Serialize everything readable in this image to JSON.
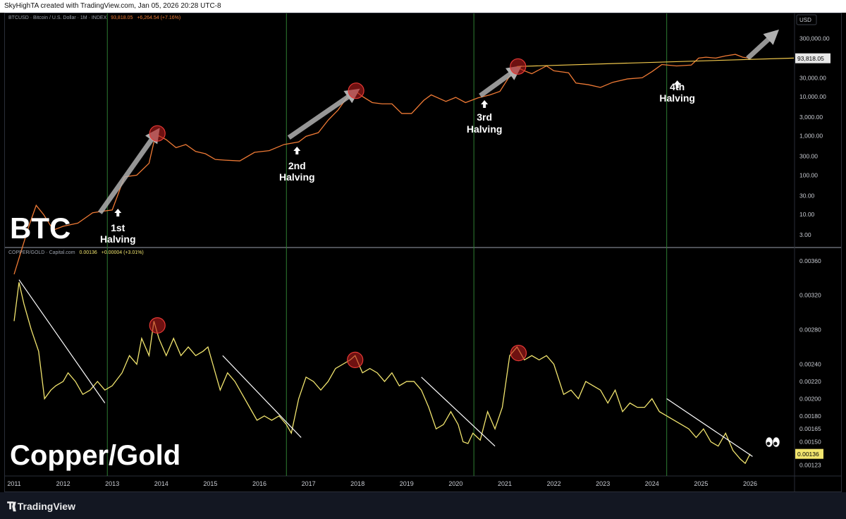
{
  "header": {
    "text": "SkyHighTA created with TradingView.com, Jan 05, 2026 20:28 UTC-8"
  },
  "footer": {
    "brand": "TradingView"
  },
  "colors": {
    "btc_line": "#ef7a35",
    "cg_line": "#f2e56e",
    "trend": "#ffffff",
    "vline": "#2f7d32",
    "circle_fill": "#b71c1c",
    "circle_stroke": "#e53935",
    "arrow": "#b0b0b0",
    "btc_trend": "#f2c94c"
  },
  "chart_data": [
    {
      "type": "line",
      "legend": {
        "symbol": "BTCUSD · Bitcoin / U.S. Dollar · 1M · INDEX",
        "value": "93,818.05",
        "change": "+6,264.54 (+7.16%)"
      },
      "big_label": "BTC",
      "axis_unit": "USD",
      "scale": "log",
      "ylim": [
        1.5,
        700000
      ],
      "y_ticks": [
        {
          "v": 300000,
          "label": "300,000.00"
        },
        {
          "v": 100000,
          "label": "100,000.00"
        },
        {
          "v": 30000,
          "label": "30,000.00"
        },
        {
          "v": 10000,
          "label": "10,000.00"
        },
        {
          "v": 3000,
          "label": "3,000.00"
        },
        {
          "v": 1000,
          "label": "1,000.00"
        },
        {
          "v": 300,
          "label": "300.00"
        },
        {
          "v": 100,
          "label": "100.00"
        },
        {
          "v": 30,
          "label": "30.00"
        },
        {
          "v": 10,
          "label": "10.00"
        },
        {
          "v": 3,
          "label": "3.00"
        }
      ],
      "last_price": {
        "v": 93818.05,
        "label": "93,818.05"
      },
      "x": [
        2011.0,
        2011.3,
        2011.45,
        2011.6,
        2011.8,
        2012.0,
        2012.3,
        2012.6,
        2012.8,
        2013.0,
        2013.25,
        2013.5,
        2013.75,
        2013.85,
        2013.95,
        2014.1,
        2014.3,
        2014.5,
        2014.7,
        2014.9,
        2015.1,
        2015.3,
        2015.6,
        2015.9,
        2016.2,
        2016.5,
        2016.8,
        2016.95,
        2017.2,
        2017.4,
        2017.6,
        2017.8,
        2017.95,
        2018.1,
        2018.3,
        2018.5,
        2018.7,
        2018.9,
        2019.1,
        2019.35,
        2019.5,
        2019.8,
        2020.0,
        2020.2,
        2020.45,
        2020.7,
        2020.9,
        2021.1,
        2021.25,
        2021.4,
        2021.55,
        2021.85,
        2022.0,
        2022.3,
        2022.45,
        2022.7,
        2022.95,
        2023.2,
        2023.5,
        2023.8,
        2024.0,
        2024.2,
        2024.5,
        2024.8,
        2024.95,
        2025.1,
        2025.3,
        2025.5,
        2025.7,
        2025.85,
        2026.0
      ],
      "y": [
        0.3,
        5,
        17,
        10,
        4,
        5,
        6,
        11,
        12,
        13,
        90,
        100,
        200,
        700,
        1000,
        800,
        500,
        600,
        400,
        350,
        250,
        240,
        230,
        380,
        420,
        600,
        700,
        970,
        1200,
        2500,
        4500,
        10000,
        14000,
        10000,
        7000,
        6500,
        6500,
        3700,
        3700,
        8000,
        11000,
        7500,
        9500,
        7000,
        9200,
        11000,
        13500,
        33000,
        55000,
        45000,
        38000,
        60000,
        45000,
        40000,
        22000,
        20000,
        17000,
        23000,
        28000,
        30000,
        43000,
        65000,
        60000,
        63000,
        95000,
        100000,
        95000,
        108000,
        118000,
        100000,
        93818
      ],
      "halvings": [
        {
          "x": 2012.9,
          "label": "1st",
          "sub": "Halving"
        },
        {
          "x": 2016.55,
          "label": "2nd",
          "sub": "Halving"
        },
        {
          "x": 2020.37,
          "label": "3rd",
          "sub": "Halving"
        },
        {
          "x": 2024.3,
          "label": "4th",
          "sub": "Halving"
        }
      ],
      "peaks": [
        {
          "x": 2013.92,
          "v": 1150
        },
        {
          "x": 2017.97,
          "v": 14000
        },
        {
          "x": 2021.27,
          "v": 58000
        }
      ]
    },
    {
      "type": "line",
      "legend": {
        "symbol": "COPPER/GOLD · Capital.com",
        "value": "0.00136",
        "change": "+0.00004 (+3.01%)"
      },
      "big_label": "Copper/Gold",
      "ylim": [
        0.00112,
        0.00368
      ],
      "y_ticks": [
        {
          "v": 0.0036,
          "label": "0.00360"
        },
        {
          "v": 0.0032,
          "label": "0.00320"
        },
        {
          "v": 0.0028,
          "label": "0.00280"
        },
        {
          "v": 0.0024,
          "label": "0.00240"
        },
        {
          "v": 0.0022,
          "label": "0.00220"
        },
        {
          "v": 0.002,
          "label": "0.00200"
        },
        {
          "v": 0.0018,
          "label": "0.00180"
        },
        {
          "v": 0.00165,
          "label": "0.00165"
        },
        {
          "v": 0.0015,
          "label": "0.00150"
        },
        {
          "v": 0.00123,
          "label": "0.00123"
        }
      ],
      "last_price": {
        "v": 0.00136,
        "label": "0.00136"
      },
      "x": [
        2011.0,
        2011.1,
        2011.2,
        2011.35,
        2011.5,
        2011.62,
        2011.75,
        2011.85,
        2012.0,
        2012.1,
        2012.25,
        2012.4,
        2012.55,
        2012.7,
        2012.85,
        2013.0,
        2013.2,
        2013.35,
        2013.5,
        2013.6,
        2013.75,
        2013.85,
        2013.95,
        2014.1,
        2014.25,
        2014.4,
        2014.55,
        2014.7,
        2014.85,
        2014.95,
        2015.05,
        2015.2,
        2015.35,
        2015.5,
        2015.65,
        2015.8,
        2015.95,
        2016.1,
        2016.25,
        2016.4,
        2016.55,
        2016.65,
        2016.8,
        2016.95,
        2017.1,
        2017.25,
        2017.4,
        2017.55,
        2017.7,
        2017.85,
        2017.95,
        2018.1,
        2018.25,
        2018.4,
        2018.55,
        2018.7,
        2018.85,
        2019.0,
        2019.15,
        2019.3,
        2019.45,
        2019.6,
        2019.75,
        2019.9,
        2020.05,
        2020.15,
        2020.25,
        2020.35,
        2020.5,
        2020.65,
        2020.8,
        2020.95,
        2021.1,
        2021.25,
        2021.4,
        2021.55,
        2021.7,
        2021.85,
        2022.0,
        2022.2,
        2022.35,
        2022.5,
        2022.65,
        2022.8,
        2022.95,
        2023.1,
        2023.25,
        2023.4,
        2023.55,
        2023.7,
        2023.85,
        2024.0,
        2024.15,
        2024.3,
        2024.45,
        2024.6,
        2024.75,
        2024.9,
        2025.05,
        2025.2,
        2025.35,
        2025.5,
        2025.65,
        2025.8,
        2025.9,
        2026.0
      ],
      "y": [
        0.0029,
        0.00335,
        0.0031,
        0.0028,
        0.00255,
        0.002,
        0.0021,
        0.00215,
        0.0022,
        0.0023,
        0.0022,
        0.00205,
        0.0021,
        0.0022,
        0.0021,
        0.00215,
        0.0023,
        0.0025,
        0.0024,
        0.0027,
        0.0025,
        0.0029,
        0.0027,
        0.0025,
        0.0027,
        0.0025,
        0.0026,
        0.0025,
        0.00255,
        0.0026,
        0.0024,
        0.0021,
        0.0023,
        0.0022,
        0.00205,
        0.0019,
        0.00175,
        0.0018,
        0.00175,
        0.0018,
        0.0017,
        0.0016,
        0.002,
        0.00225,
        0.0022,
        0.0021,
        0.0022,
        0.00235,
        0.0024,
        0.00245,
        0.0025,
        0.0023,
        0.00235,
        0.0023,
        0.0022,
        0.0023,
        0.00215,
        0.0022,
        0.0022,
        0.0021,
        0.0019,
        0.00165,
        0.0017,
        0.00185,
        0.0017,
        0.0015,
        0.00148,
        0.0016,
        0.00152,
        0.00185,
        0.00165,
        0.0019,
        0.0025,
        0.0026,
        0.00245,
        0.0025,
        0.00245,
        0.0025,
        0.0024,
        0.00205,
        0.0021,
        0.002,
        0.0022,
        0.00215,
        0.0021,
        0.00195,
        0.0021,
        0.00185,
        0.00195,
        0.0019,
        0.0019,
        0.002,
        0.00185,
        0.0018,
        0.00175,
        0.0017,
        0.00165,
        0.00155,
        0.00165,
        0.0015,
        0.00145,
        0.0016,
        0.0014,
        0.0013,
        0.00125,
        0.00136
      ],
      "peaks": [
        {
          "x": 2013.92,
          "v": 0.00285
        },
        {
          "x": 2017.95,
          "v": 0.00245
        },
        {
          "x": 2021.28,
          "v": 0.00253
        }
      ]
    }
  ],
  "x_axis": {
    "labels": [
      "2011",
      "2012",
      "2013",
      "2014",
      "2015",
      "2016",
      "2017",
      "2018",
      "2019",
      "2020",
      "2021",
      "2022",
      "2023",
      "2024",
      "2025",
      "2026"
    ]
  }
}
